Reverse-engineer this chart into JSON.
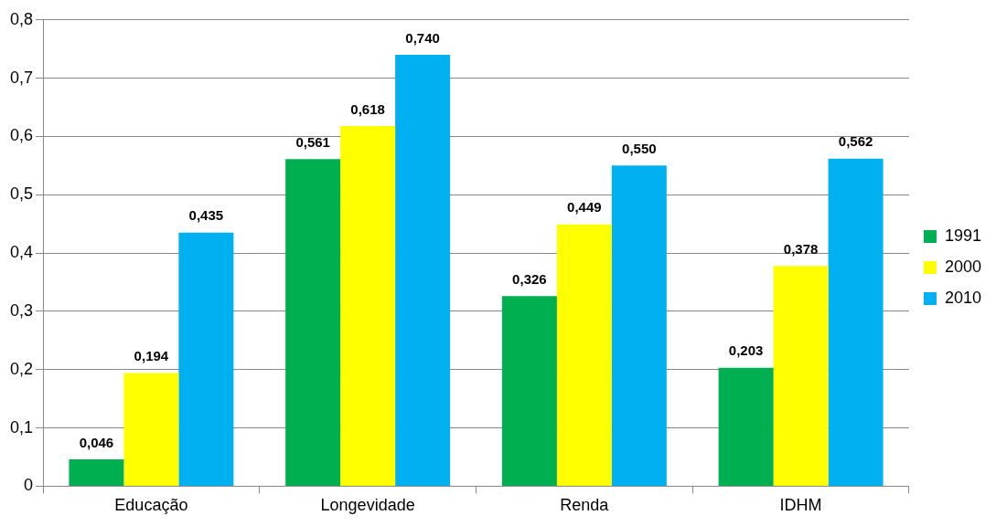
{
  "chart_data": {
    "type": "bar",
    "categories": [
      "Educação",
      "Longevidade",
      "Renda",
      "IDHM"
    ],
    "series": [
      {
        "name": "1991",
        "color": "#00b050",
        "values": [
          0.046,
          0.561,
          0.326,
          0.203
        ],
        "value_labels": [
          "0,046",
          "0,561",
          "0,326",
          "0,203"
        ]
      },
      {
        "name": "2000",
        "color": "#ffff00",
        "values": [
          0.194,
          0.618,
          0.449,
          0.378
        ],
        "value_labels": [
          "0,194",
          "0,618",
          "0,449",
          "0,378"
        ]
      },
      {
        "name": "2010",
        "color": "#00b0f0",
        "values": [
          0.435,
          0.74,
          0.55,
          0.562
        ],
        "value_labels": [
          "0,435",
          "0,740",
          "0,550",
          "0,562"
        ]
      }
    ],
    "ylim": [
      0,
      0.8
    ],
    "yticks": [
      0,
      {
        "value": 0.1,
        "label": "0,1"
      },
      {
        "value": 0.2,
        "label": "0,2"
      },
      {
        "value": 0.3,
        "label": "0,3"
      },
      {
        "value": 0.4,
        "label": "0,4"
      },
      {
        "value": 0.5,
        "label": "0,5"
      },
      {
        "value": 0.6,
        "label": "0,6"
      },
      {
        "value": 0.7,
        "label": "0,7"
      },
      {
        "value": 0.8,
        "label": "0,8"
      }
    ],
    "grid": "y",
    "legend": "right"
  }
}
